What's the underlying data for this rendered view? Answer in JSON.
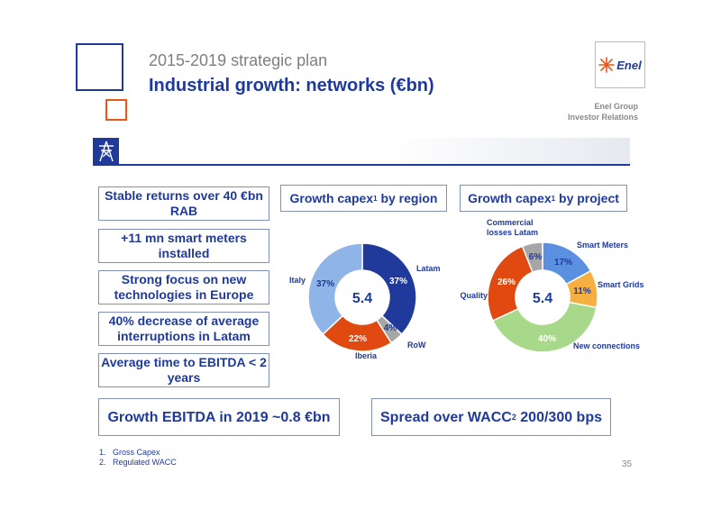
{
  "header": {
    "subtitle": "2015-2019 strategic plan",
    "title": "Industrial growth: networks (€bn)",
    "logo": "Enel",
    "group_line1": "Enel Group",
    "group_line2": "Investor Relations"
  },
  "left_boxes": [
    "Stable returns over 40 €bn RAB",
    "+11 mn smart meters installed",
    "Strong focus on new technologies in Europe",
    "40% decrease of average interruptions in Latam",
    "Average time to EBITDA < 2 years"
  ],
  "headers": {
    "region_text": "Growth capex",
    "region_sup": "1",
    "region_suffix": " by region",
    "project_text": "Growth capex",
    "project_sup": "1",
    "project_suffix": " by project"
  },
  "bottom": {
    "ebitda": "Growth EBITDA in 2019 ~0.8 €bn",
    "spread_text": "Spread over WACC",
    "spread_sup": "2",
    "spread_suffix": " 200/300 bps"
  },
  "footnotes": [
    "1.   Gross Capex",
    "2.   Regulated WACC"
  ],
  "page_number": "35",
  "colors": {
    "primary": "#1f3a9a",
    "orange": "#e8561a"
  },
  "chart_data": [
    {
      "type": "pie",
      "center_label": "5.4",
      "slices": [
        {
          "name": "Latam",
          "value": 37,
          "label": "37%",
          "color": "#1f3a9a"
        },
        {
          "name": "RoW",
          "value": 4,
          "label": "4%",
          "color": "#a6a6a6"
        },
        {
          "name": "Iberia",
          "value": 22,
          "label": "22%",
          "color": "#e04a10"
        },
        {
          "name": "Italy",
          "value": 37,
          "label": "37%",
          "color": "#8eb4e8"
        }
      ]
    },
    {
      "type": "pie",
      "center_label": "5.4",
      "slices": [
        {
          "name": "Smart Meters",
          "value": 17,
          "label": "17%",
          "color": "#5b8fe0"
        },
        {
          "name": "Smart Grids",
          "value": 11,
          "label": "11%",
          "color": "#f5b041"
        },
        {
          "name": "New connections",
          "value": 40,
          "label": "40%",
          "color": "#a8d88a"
        },
        {
          "name": "Quality",
          "value": 26,
          "label": "26%",
          "color": "#e04a10"
        },
        {
          "name": "Commercial losses Latam",
          "value": 6,
          "label": "6%",
          "color": "#a6a6a6"
        }
      ]
    }
  ]
}
